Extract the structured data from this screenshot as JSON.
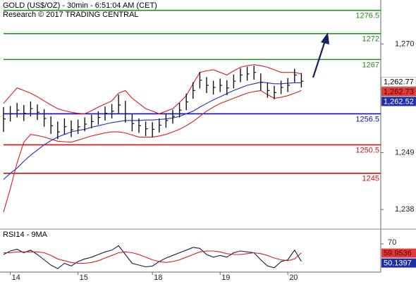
{
  "chart_data": {
    "type": "ohlc",
    "title": "GOLD (US$/OZ) - 30min - 6:51:04 AM (CET)",
    "subtitle": "Research © 2017 TRADING CENTRAL",
    "categories": [
      null,
      "14",
      null,
      null,
      null,
      null,
      null,
      null,
      null,
      null,
      null,
      "15",
      null,
      null,
      null,
      null,
      null,
      null,
      null,
      null,
      null,
      null,
      "18",
      null,
      null,
      null,
      null,
      null,
      null,
      null,
      null,
      null,
      "19",
      null,
      null,
      null,
      null,
      null,
      null,
      null,
      null,
      null,
      "20",
      null,
      null
    ],
    "high": [
      1257.8,
      1258.0,
      1258.6,
      1258.2,
      1258.9,
      1258.3,
      1257.4,
      1256.0,
      1255.0,
      1255.6,
      1255.2,
      1255.4,
      1255.8,
      1256.3,
      1257.0,
      1257.9,
      1258.4,
      1260.2,
      1259.0,
      1256.4,
      1255.6,
      1255.0,
      1254.9,
      1255.6,
      1256.6,
      1257.3,
      1258.6,
      1260.4,
      1262.6,
      1264.6,
      1263.6,
      1262.9,
      1263.3,
      1263.0,
      1264.1,
      1265.3,
      1265.6,
      1265.8,
      1264.3,
      1262.5,
      1261.9,
      1262.9,
      1263.4,
      1265.2,
      1264.4
    ],
    "low": [
      1253.0,
      1255.0,
      1255.8,
      1255.1,
      1256.0,
      1255.3,
      1254.0,
      1252.6,
      1251.6,
      1252.5,
      1252.0,
      1252.6,
      1253.1,
      1253.7,
      1254.4,
      1255.2,
      1255.6,
      1256.6,
      1254.8,
      1253.1,
      1252.8,
      1252.2,
      1252.0,
      1252.9,
      1253.8,
      1254.6,
      1255.8,
      1257.2,
      1259.4,
      1261.4,
      1260.5,
      1260.2,
      1260.7,
      1260.1,
      1261.4,
      1262.6,
      1262.9,
      1263.1,
      1261.0,
      1259.6,
      1259.3,
      1260.3,
      1260.7,
      1262.6,
      1261.6
    ],
    "close": [
      1255.5,
      1256.5,
      1257.2,
      1256.6,
      1257.5,
      1256.8,
      1255.6,
      1254.2,
      1253.0,
      1254.0,
      1253.4,
      1254.0,
      1254.5,
      1255.0,
      1255.8,
      1256.6,
      1257.0,
      1258.2,
      1256.5,
      1254.6,
      1254.2,
      1253.6,
      1253.5,
      1254.3,
      1255.2,
      1256.0,
      1257.2,
      1258.8,
      1261.0,
      1263.0,
      1262.0,
      1261.6,
      1262.0,
      1261.5,
      1262.8,
      1264.0,
      1264.2,
      1264.5,
      1262.6,
      1261.0,
      1260.6,
      1261.6,
      1262.0,
      1264.0,
      1262.8
    ],
    "bar_color": "#111111",
    "overlays": [
      {
        "color": "#d42020",
        "values": [
          1258.5,
          1260.0,
          1261.5,
          1261.0,
          1260.5,
          1259.8,
          1259.0,
          1258.2,
          1257.5,
          1257.1,
          1256.8,
          1256.6,
          1256.5,
          1257.1,
          1257.8,
          1258.4,
          1259.0,
          1260.5,
          1261.0,
          1259.5,
          1258.5,
          1257.5,
          1257.0,
          1256.5,
          1257.0,
          1257.5,
          1258.7,
          1260.0,
          1262.3,
          1264.5,
          1264.8,
          1265.0,
          1264.5,
          1264.0,
          1264.8,
          1265.5,
          1265.8,
          1266.0,
          1265.8,
          1265.5,
          1265.0,
          1264.5,
          1264.5,
          1264.5,
          1264.2
        ]
      },
      {
        "color": "#d42020",
        "values": [
          1237.5,
          1242.0,
          1247.0,
          1251.0,
          1252.5,
          1252.3,
          1252.0,
          1251.6,
          1251.2,
          1251.1,
          1251.0,
          1251.4,
          1251.8,
          1252.2,
          1252.5,
          1252.8,
          1253.0,
          1253.0,
          1252.8,
          1252.4,
          1252.0,
          1252.0,
          1252.0,
          1252.2,
          1252.5,
          1253.0,
          1253.5,
          1254.2,
          1255.0,
          1256.0,
          1257.0,
          1257.8,
          1258.5,
          1259.0,
          1259.5,
          1260.0,
          1260.5,
          1260.8,
          1261.0,
          1260.2,
          1259.5,
          1259.7,
          1260.0,
          1260.5,
          1261.0
        ]
      },
      {
        "color": "#2030c0",
        "values": [
          1243.8,
          1245.0,
          1246.0,
          1247.3,
          1248.5,
          1249.5,
          1250.5,
          1251.3,
          1252.0,
          1252.5,
          1253.0,
          1253.3,
          1253.5,
          1253.9,
          1254.2,
          1254.5,
          1254.8,
          1255.0,
          1255.2,
          1255.2,
          1255.2,
          1255.3,
          1255.3,
          1255.4,
          1255.5,
          1255.7,
          1256.0,
          1256.5,
          1257.0,
          1257.8,
          1258.5,
          1259.2,
          1259.8,
          1260.4,
          1261.0,
          1261.5,
          1262.0,
          1262.3,
          1262.6,
          1262.5,
          1262.3,
          1262.3,
          1262.4,
          1262.5,
          1262.5
        ]
      }
    ],
    "levels": [
      {
        "value": 1276.5,
        "color": "#1f8f1f"
      },
      {
        "value": 1272,
        "color": "#1f8f1f"
      },
      {
        "value": 1267,
        "color": "#1f8f1f"
      },
      {
        "value": 1256.5,
        "color": "#1010b0"
      },
      {
        "value": 1250.5,
        "color": "#d01010"
      },
      {
        "value": 1245,
        "color": "#d01010"
      }
    ],
    "ylim": [
      1234.2,
      1278.5
    ],
    "yticks": [
      {
        "value": 1238,
        "label": "1,238"
      },
      {
        "value": 1249,
        "label": "1,249"
      },
      {
        "value": 1270,
        "label": "1,270"
      }
    ],
    "price_tags": [
      {
        "value": 1262.77,
        "label": "1,262.77",
        "color": "#ffffff",
        "text_color": "#000000"
      },
      {
        "value": 1262.73,
        "label": "1,262.73",
        "color": "#e03a3a",
        "text_color": "#5a0000"
      },
      {
        "value": 1262.52,
        "label": "1,262.52",
        "color": "#1c2fa8",
        "text_color": "#ffffff"
      }
    ],
    "rsi": {
      "title": "RSI14 - 9MA",
      "ylim": [
        38,
        86
      ],
      "yticks": [
        70
      ],
      "series": [
        {
          "color": "#1a1a40",
          "values": [
            58,
            62,
            64,
            60,
            63,
            58,
            52,
            46,
            42,
            48,
            45,
            50,
            53,
            55,
            58,
            61,
            63,
            68,
            58,
            48,
            46,
            44,
            45,
            50,
            54,
            57,
            60,
            63,
            66,
            65,
            58,
            55,
            57,
            55,
            60,
            62,
            61,
            60,
            52,
            45,
            43,
            50,
            52,
            63,
            50.1397
          ]
        },
        {
          "color": "#d42020",
          "values": [
            60,
            60,
            61,
            61,
            61,
            61,
            60,
            57,
            53,
            51,
            49,
            48,
            48,
            49,
            51,
            54,
            57,
            60,
            61,
            60,
            58,
            55,
            52,
            50,
            49,
            50,
            52,
            55,
            58,
            61,
            62,
            62,
            61,
            59,
            58,
            58,
            59,
            60,
            59,
            57,
            54,
            52,
            51,
            53,
            59.9536
          ]
        }
      ],
      "tags": [
        {
          "value": 59.9536,
          "color": "#e03a3a",
          "text_color": "#5a0000"
        },
        {
          "value": 50.1397,
          "color": "#1c2fa8",
          "text_color": "#ffffff"
        }
      ]
    }
  }
}
